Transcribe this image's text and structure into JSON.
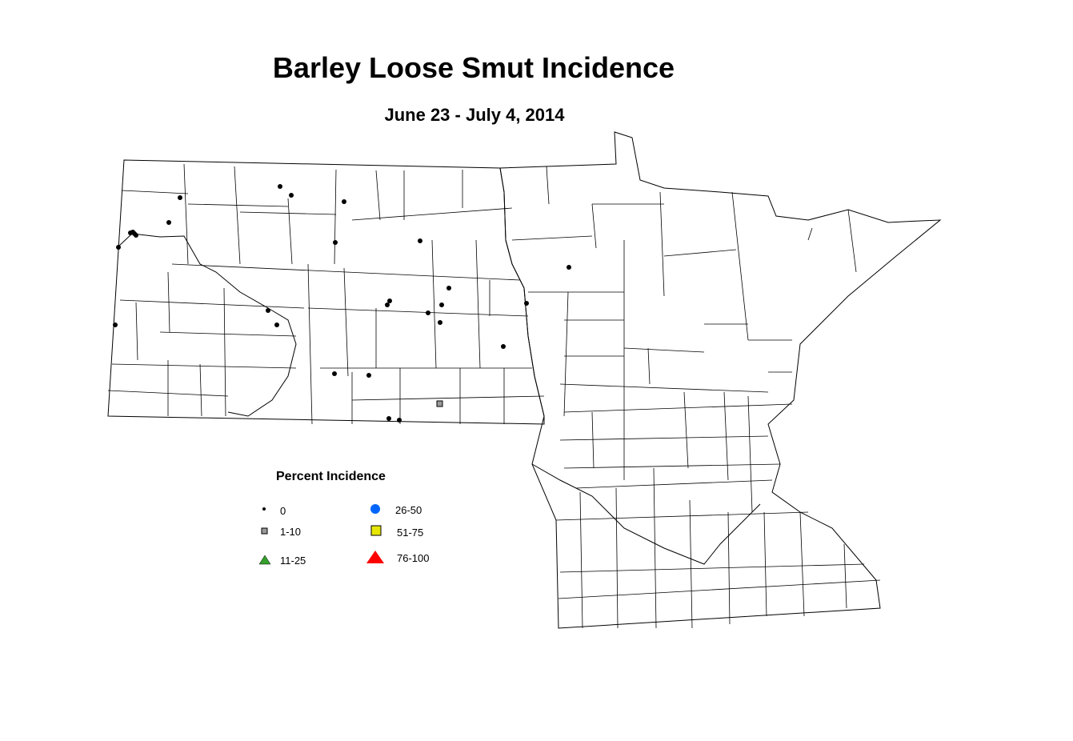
{
  "title": "Barley Loose Smut Incidence",
  "subtitle": "June 23 - July 4, 2014",
  "legend": {
    "title": "Percent Incidence",
    "classes": [
      {
        "label": "0",
        "symbol": "dot",
        "color": "#000000"
      },
      {
        "label": "1-10",
        "symbol": "square",
        "color": "#999999"
      },
      {
        "label": "11-25",
        "symbol": "triangle",
        "color": "#33a02c"
      },
      {
        "label": "26-50",
        "symbol": "circle",
        "color": "#0066ff"
      },
      {
        "label": "51-75",
        "symbol": "square",
        "color": "#e6e600"
      },
      {
        "label": "76-100",
        "symbol": "triangle",
        "color": "#ff0000"
      }
    ]
  },
  "sites": {
    "class_0_count": 28,
    "class_1_10_count": 1
  }
}
